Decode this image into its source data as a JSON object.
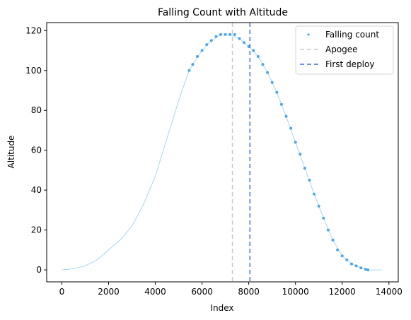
{
  "chart_data": {
    "type": "scatter",
    "title": "Falling Count with Altitude",
    "xlabel": "Index",
    "ylabel": "Altitude",
    "xlim": [
      -650,
      14400
    ],
    "ylim": [
      -6,
      124
    ],
    "xticks": [
      0,
      2000,
      4000,
      6000,
      8000,
      10000,
      12000,
      14000
    ],
    "yticks": [
      0,
      20,
      40,
      60,
      80,
      100,
      120
    ],
    "grid": false,
    "legend": "top-right",
    "series": [
      {
        "name": "Falling count",
        "style": "points",
        "color": "#4aa6e8",
        "x": [
          5450,
          5600,
          5800,
          6000,
          6200,
          6400,
          6600,
          6800,
          7000,
          7200,
          7400,
          7600,
          7800,
          8000,
          8200,
          8400,
          8600,
          8800,
          9000,
          9200,
          9400,
          9600,
          9800,
          10000,
          10200,
          10400,
          10600,
          10800,
          11000,
          11200,
          11400,
          11600,
          11800,
          12000,
          12200,
          12400,
          12600,
          12800,
          13000,
          13100
        ],
        "y": [
          100,
          103,
          107,
          110,
          113,
          115,
          117,
          118,
          118,
          118,
          118,
          116,
          114,
          112,
          110,
          107,
          103,
          99,
          94,
          89,
          83,
          77,
          71,
          64,
          58,
          51,
          45,
          38,
          32,
          26,
          20,
          15,
          10,
          7,
          5,
          3,
          2,
          1,
          0.3,
          0
        ]
      },
      {
        "name": "",
        "style": "line",
        "color": "#8ecff2",
        "x": [
          0,
          500,
          1000,
          1500,
          2000,
          2500,
          3000,
          3500,
          4000,
          4500,
          5000,
          5450,
          5600,
          6000,
          6400,
          6800,
          7200,
          7600,
          8000,
          8400,
          8800,
          9200,
          9600,
          10000,
          10400,
          10800,
          11200,
          11600,
          12000,
          12400,
          12800,
          13100,
          13400,
          13700
        ],
        "y": [
          0,
          0.6,
          2,
          5,
          10,
          15,
          22,
          33,
          47,
          66,
          85,
          100,
          103,
          110,
          115,
          118,
          118,
          116,
          112,
          107,
          99,
          89,
          77,
          64,
          51,
          38,
          26,
          15,
          7,
          3,
          1,
          0,
          0,
          0
        ]
      }
    ],
    "vlines": [
      {
        "name": "Apogee",
        "x": 7300,
        "color": "#c8c8c8",
        "dash": "6,4"
      },
      {
        "name": "First deploy",
        "x": 8050,
        "color": "#3f6fdc",
        "dash": "6,4"
      }
    ]
  }
}
